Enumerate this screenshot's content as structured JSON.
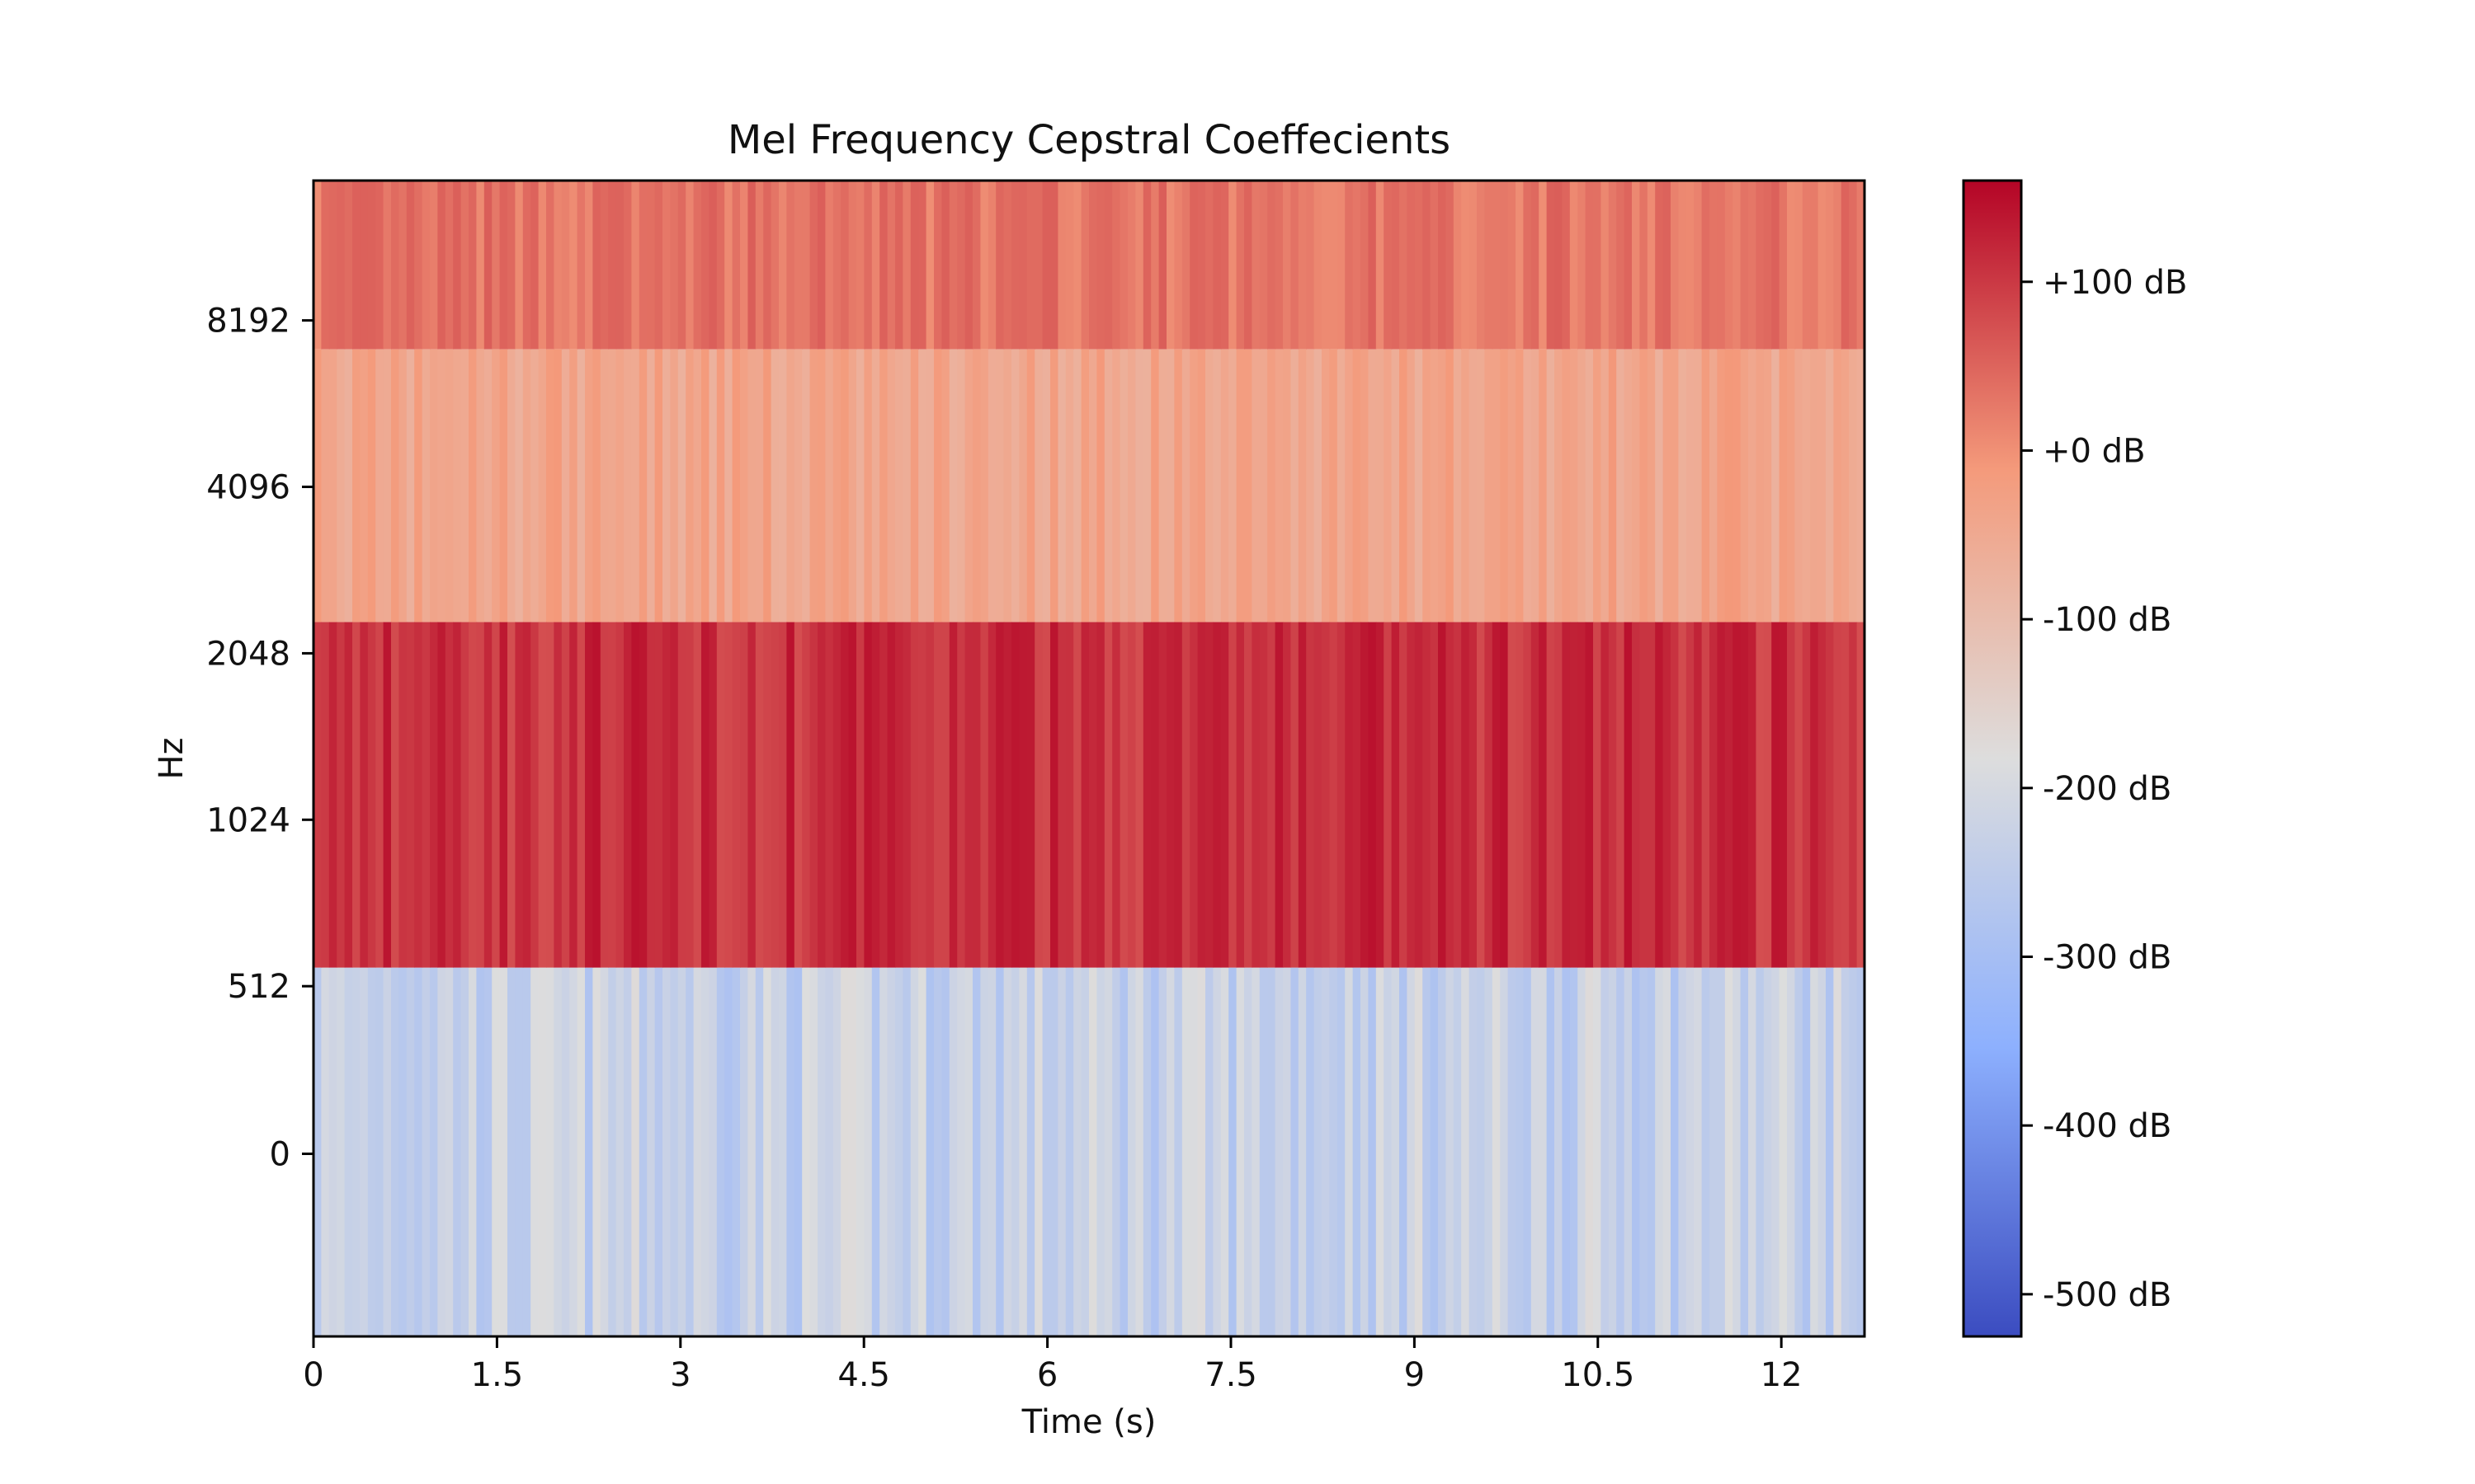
{
  "chart_data": {
    "type": "heatmap",
    "title": "Mel Frequency Cepstral Coeffecients",
    "xlabel": "Time (s)",
    "ylabel": "Hz",
    "xlim": [
      0,
      12.68
    ],
    "x_ticks": [
      "0",
      "1.5",
      "3",
      "4.5",
      "6",
      "7.5",
      "9",
      "10.5",
      "12"
    ],
    "y_ticks": [
      "8192",
      "4096",
      "2048",
      "1024",
      "512",
      "0"
    ],
    "colorbar": {
      "ticks": [
        "+100 dB",
        "+0 dB",
        "-100 dB",
        "-200 dB",
        "-300 dB",
        "-400 dB",
        "-500 dB"
      ],
      "range_db": [
        -525,
        160
      ],
      "colormap": "coolwarm"
    },
    "rows": [
      {
        "band": "top",
        "mean_db": 30
      },
      {
        "band": "second",
        "mean_db": -40
      },
      {
        "band": "third",
        "mean_db": 110
      },
      {
        "band": "bottom",
        "mean_db": -230
      }
    ],
    "frames": 200
  }
}
